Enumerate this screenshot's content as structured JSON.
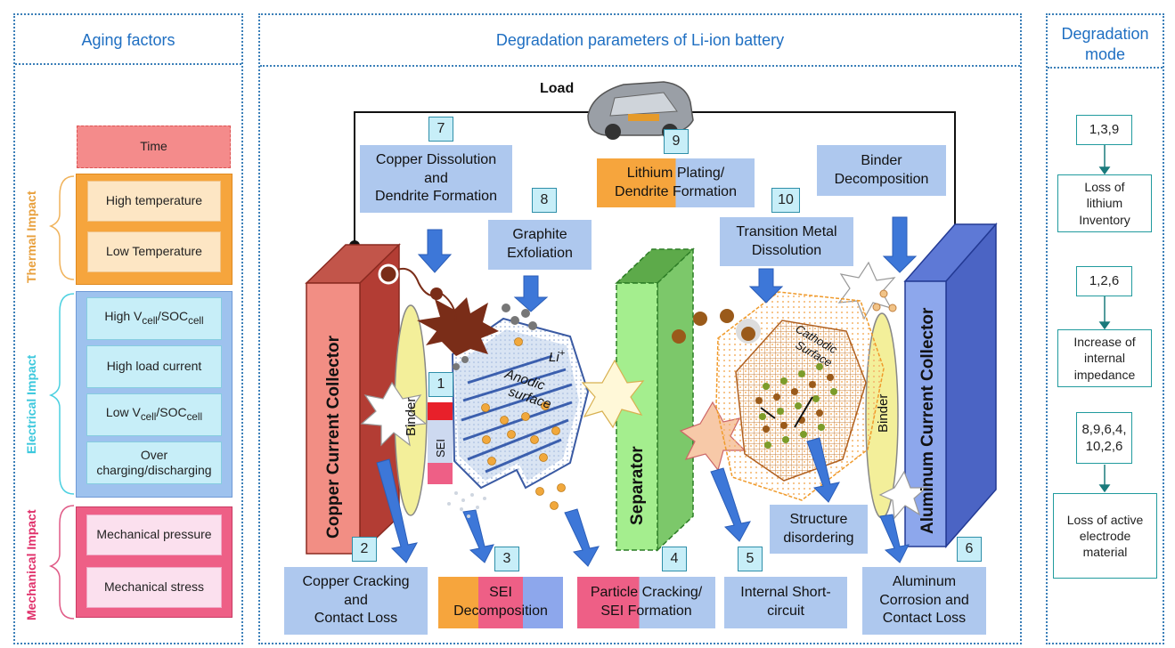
{
  "panels": {
    "left_title": "Aging factors",
    "center_title": "Degradation parameters of Li-ion battery",
    "right_title_line1": "Degradation",
    "right_title_line2": "mode"
  },
  "factors": {
    "time": "Time",
    "thermal_label": "Thermal Impact",
    "high_temp": "High temperature",
    "low_temp": "Low Temperature",
    "electrical_label": "Electrical Impact",
    "high_v": "High V",
    "high_v_sub1": "cell",
    "high_v_mid": "/SOC",
    "high_v_sub2": "cell",
    "high_load": "High load current",
    "low_v": "Low V",
    "low_v_sub1": "cell",
    "low_v_mid": "/SOC",
    "low_v_sub2": "cell",
    "over_charging_1": "Over",
    "over_charging_2": "charging/discharging",
    "mechanical_label": "Mechanical Impact",
    "mech_pressure": "Mechanical pressure",
    "mech_stress": "Mechanical stress"
  },
  "diagram": {
    "load": "Load",
    "copper_collector": "Copper Current Collector",
    "aluminum_collector": "Aluminum Current Collector",
    "separator": "Separator",
    "binder_left": "Binder",
    "binder_right": "Binder",
    "sei": "SEI",
    "anodic_1": "Anodic",
    "anodic_2": "surface",
    "cathodic_1": "Cathodic",
    "cathodic_2": "Surface",
    "li_plus": "Li",
    "li_sup": "+"
  },
  "callouts": {
    "c7_line1": "Copper Dissolution",
    "c7_line2": "and",
    "c7_line3": "Dendrite Formation",
    "c9_line1": "Lithium Plating/",
    "c9_line2": "Dendrite Formation",
    "binder_line1": "Binder",
    "binder_line2": "Decomposition",
    "c8_line1": "Graphite",
    "c8_line2": "Exfoliation",
    "c10_line1": "Transition Metal",
    "c10_line2": "Dissolution",
    "structure_line1": "Structure",
    "structure_line2": "disordering",
    "c2_line1": "Copper Cracking",
    "c2_line2": "and",
    "c2_line3": "Contact Loss",
    "c3_line1": "SEI",
    "c3_line2": "Decomposition",
    "c4_line1": "Particle Cracking/",
    "c4_line2": "SEI Formation",
    "c5_line1": "Internal Short-",
    "c5_line2": "circuit",
    "c6_line1": "Aluminum",
    "c6_line2": "Corrosion and",
    "c6_line3": "Contact Loss"
  },
  "numbers": {
    "n1": "1",
    "n2": "2",
    "n3": "3",
    "n4": "4",
    "n5": "5",
    "n6": "6",
    "n7": "7",
    "n8": "8",
    "n9": "9",
    "n10": "10"
  },
  "modes": {
    "m1_nums": "1,3,9",
    "m1_l1": "Loss of",
    "m1_l2": "lithium",
    "m1_l3": "Inventory",
    "m2_nums": "1,2,6",
    "m2_l1": "Increase of",
    "m2_l2": "internal",
    "m2_l3": "impedance",
    "m3_nums_1": "8,9,6,4,",
    "m3_nums_2": "10,2,6",
    "m3_l1": "Loss of active",
    "m3_l2": "electrode",
    "m3_l3": "material"
  },
  "colors": {
    "panel_border": "#3b7fb8",
    "title_blue": "#1f6fc2",
    "time_fill": "#f48b8b",
    "thermal_fill": "#f6a53d",
    "thermal_label": "#e8a03d",
    "electrical_fill": "#9ec2ee",
    "electrical_label": "#3cc8dd",
    "mechanical_fill": "#ee5f86",
    "mechanical_label": "#e0306a",
    "callout_fill": "#aec8ee",
    "copper": "#f08e84",
    "aluminum": "#8da7ec",
    "separator": "#a4ee8e",
    "binder": "#f3ef9a"
  }
}
